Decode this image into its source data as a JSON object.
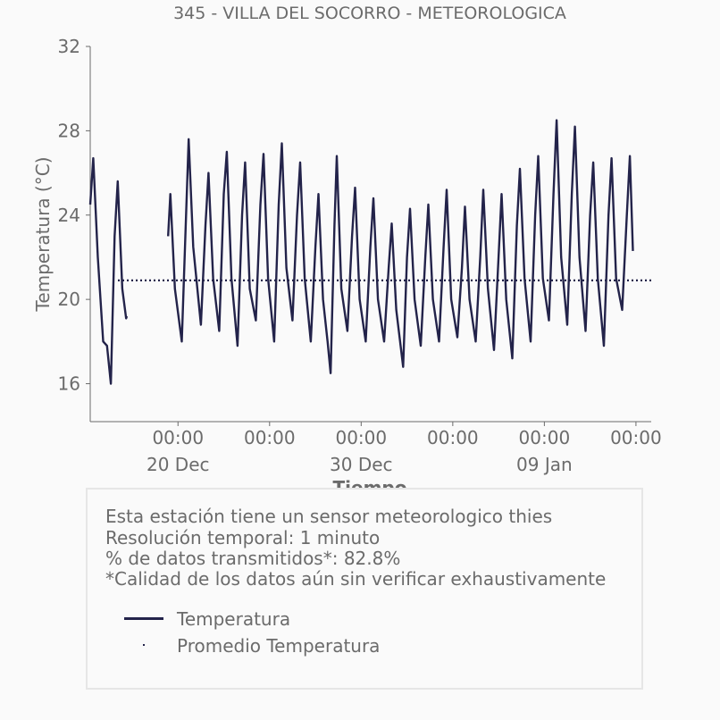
{
  "chart_data": {
    "type": "line",
    "title": "345 - VILLA DEL SOCORRO - METEOROLOGICA",
    "xlabel": "Tiempo",
    "ylabel": "Temperatura (°C)",
    "ylim": [
      14.2,
      32
    ],
    "yticks": [
      "16",
      "20",
      "24",
      "28",
      "32"
    ],
    "xlim": [
      "2023-12-15T05:00",
      "2024-01-14T20:00"
    ],
    "xticks_major": [
      {
        "time": "2023-12-20T00:00",
        "label": "00:00\n20 Dec"
      },
      {
        "time": "2023-12-25T00:00",
        "label": "00:00"
      },
      {
        "time": "2023-12-30T00:00",
        "label": "00:00\n30 Dec"
      },
      {
        "time": "2024-01-04T00:00",
        "label": "00:00"
      },
      {
        "time": "2024-01-09T00:00",
        "label": "00:00\n09 Jan"
      },
      {
        "time": "2024-01-14T00:00",
        "label": "00:00"
      }
    ],
    "series": [
      {
        "name": "Temperatura",
        "color": "#23234a",
        "points": [
          [
            "2023-12-15T05:00",
            24.5
          ],
          [
            "2023-12-15T09:00",
            26.7
          ],
          [
            "2023-12-15T15:00",
            22.0
          ],
          [
            "2023-12-15T22:00",
            18.0
          ],
          [
            "2023-12-16T03:00",
            17.8
          ],
          [
            "2023-12-16T08:00",
            16.0
          ],
          [
            "2023-12-16T13:00",
            23.0
          ],
          [
            "2023-12-16T17:00",
            25.6
          ],
          [
            "2023-12-16T23:00",
            20.5
          ],
          [
            "2023-12-17T04:00",
            19.1
          ],
          [
            "2023-12-17T05:00",
            19.2
          ],
          null,
          [
            "2023-12-19T11:00",
            23.0
          ],
          [
            "2023-12-19T14:00",
            25.0
          ],
          [
            "2023-12-19T20:00",
            20.5
          ],
          [
            "2023-12-20T05:00",
            18.0
          ],
          [
            "2023-12-20T11:00",
            24.5
          ],
          [
            "2023-12-20T14:00",
            27.6
          ],
          [
            "2023-12-20T20:00",
            22.5
          ],
          [
            "2023-12-21T06:00",
            18.8
          ],
          [
            "2023-12-21T12:00",
            23.5
          ],
          [
            "2023-12-21T16:00",
            26.0
          ],
          [
            "2023-12-21T22:00",
            21.0
          ],
          [
            "2023-12-22T06:00",
            18.5
          ],
          [
            "2023-12-22T12:00",
            25.0
          ],
          [
            "2023-12-22T16:00",
            27.0
          ],
          [
            "2023-12-22T22:00",
            21.0
          ],
          [
            "2023-12-23T06:00",
            17.8
          ],
          [
            "2023-12-23T12:00",
            24.0
          ],
          [
            "2023-12-23T16:00",
            26.5
          ],
          [
            "2023-12-23T22:00",
            20.5
          ],
          [
            "2023-12-24T06:00",
            19.0
          ],
          [
            "2023-12-24T12:00",
            24.5
          ],
          [
            "2023-12-24T16:00",
            26.9
          ],
          [
            "2023-12-24T22:00",
            21.0
          ],
          [
            "2023-12-25T06:00",
            18.0
          ],
          [
            "2023-12-25T12:00",
            24.5
          ],
          [
            "2023-12-25T16:00",
            27.4
          ],
          [
            "2023-12-25T22:00",
            21.5
          ],
          [
            "2023-12-26T06:00",
            19.0
          ],
          [
            "2023-12-26T12:00",
            24.0
          ],
          [
            "2023-12-26T16:00",
            26.5
          ],
          [
            "2023-12-26T22:00",
            21.0
          ],
          [
            "2023-12-27T06:00",
            18.0
          ],
          [
            "2023-12-27T12:00",
            22.5
          ],
          [
            "2023-12-27T16:00",
            25.0
          ],
          [
            "2023-12-27T22:00",
            20.0
          ],
          [
            "2023-12-28T04:00",
            18.0
          ],
          [
            "2023-12-28T08:00",
            16.5
          ],
          [
            "2023-12-28T13:00",
            23.5
          ],
          [
            "2023-12-28T16:00",
            26.8
          ],
          [
            "2023-12-28T22:00",
            20.5
          ],
          [
            "2023-12-29T06:00",
            18.5
          ],
          [
            "2023-12-29T12:00",
            23.0
          ],
          [
            "2023-12-29T16:00",
            25.3
          ],
          [
            "2023-12-29T22:00",
            20.0
          ],
          [
            "2023-12-30T06:00",
            18.0
          ],
          [
            "2023-12-30T12:00",
            22.5
          ],
          [
            "2023-12-30T16:00",
            24.8
          ],
          [
            "2023-12-30T22:00",
            20.0
          ],
          [
            "2023-12-31T06:00",
            18.0
          ],
          [
            "2023-12-31T12:00",
            21.5
          ],
          [
            "2023-12-31T16:00",
            23.6
          ],
          [
            "2023-12-31T22:00",
            19.5
          ],
          [
            "2024-01-01T07:00",
            16.8
          ],
          [
            "2024-01-01T12:00",
            22.0
          ],
          [
            "2024-01-01T16:00",
            24.3
          ],
          [
            "2024-01-01T22:00",
            20.0
          ],
          [
            "2024-01-02T06:00",
            17.8
          ],
          [
            "2024-01-02T12:00",
            22.0
          ],
          [
            "2024-01-02T16:00",
            24.5
          ],
          [
            "2024-01-02T22:00",
            20.0
          ],
          [
            "2024-01-03T06:00",
            18.0
          ],
          [
            "2024-01-03T12:00",
            22.5
          ],
          [
            "2024-01-03T16:00",
            25.2
          ],
          [
            "2024-01-03T22:00",
            20.0
          ],
          [
            "2024-01-04T06:00",
            18.2
          ],
          [
            "2024-01-04T12:00",
            21.5
          ],
          [
            "2024-01-04T16:00",
            24.4
          ],
          [
            "2024-01-04T22:00",
            20.0
          ],
          [
            "2024-01-05T06:00",
            18.0
          ],
          [
            "2024-01-05T12:00",
            22.0
          ],
          [
            "2024-01-05T16:00",
            25.2
          ],
          [
            "2024-01-05T22:00",
            20.5
          ],
          [
            "2024-01-06T06:00",
            17.6
          ],
          [
            "2024-01-06T12:00",
            22.0
          ],
          [
            "2024-01-06T16:00",
            25.0
          ],
          [
            "2024-01-06T22:00",
            20.0
          ],
          [
            "2024-01-07T06:00",
            17.2
          ],
          [
            "2024-01-07T12:00",
            23.5
          ],
          [
            "2024-01-07T16:00",
            26.2
          ],
          [
            "2024-01-07T22:00",
            21.0
          ],
          [
            "2024-01-08T06:00",
            18.0
          ],
          [
            "2024-01-08T12:00",
            24.0
          ],
          [
            "2024-01-08T16:00",
            26.8
          ],
          [
            "2024-01-08T22:00",
            21.0
          ],
          [
            "2024-01-09T06:00",
            19.0
          ],
          [
            "2024-01-09T12:00",
            25.0
          ],
          [
            "2024-01-09T16:00",
            28.5
          ],
          [
            "2024-01-09T22:00",
            22.0
          ],
          [
            "2024-01-10T06:00",
            18.8
          ],
          [
            "2024-01-10T12:00",
            25.0
          ],
          [
            "2024-01-10T16:00",
            28.2
          ],
          [
            "2024-01-10T22:00",
            22.0
          ],
          [
            "2024-01-11T06:00",
            18.5
          ],
          [
            "2024-01-11T12:00",
            24.0
          ],
          [
            "2024-01-11T16:00",
            26.5
          ],
          [
            "2024-01-11T22:00",
            21.0
          ],
          [
            "2024-01-12T06:00",
            17.8
          ],
          [
            "2024-01-12T12:00",
            24.0
          ],
          [
            "2024-01-12T16:00",
            26.7
          ],
          [
            "2024-01-12T22:00",
            21.0
          ],
          [
            "2024-01-13T06:00",
            19.5
          ],
          [
            "2024-01-13T12:00",
            24.0
          ],
          [
            "2024-01-13T16:00",
            26.8
          ],
          [
            "2024-01-13T20:00",
            22.3
          ]
        ]
      },
      {
        "name": "Promedio Temperatura",
        "color": "#23234a",
        "style": "dotted",
        "value": 20.9
      }
    ],
    "legend": [
      "Temperatura",
      "Promedio Temperatura"
    ],
    "legend_placement": "below-plot",
    "grid": false
  },
  "info": {
    "lines": [
      "Esta estación tiene un sensor meteorologico thies",
      "Resolución temporal: 1 minuto",
      "% de datos transmitidos*: 82.8%",
      "*Calidad de los datos aún sin verificar exhaustivamente"
    ],
    "legend_temp": "Temperatura",
    "legend_avg": "Promedio Temperatura"
  }
}
